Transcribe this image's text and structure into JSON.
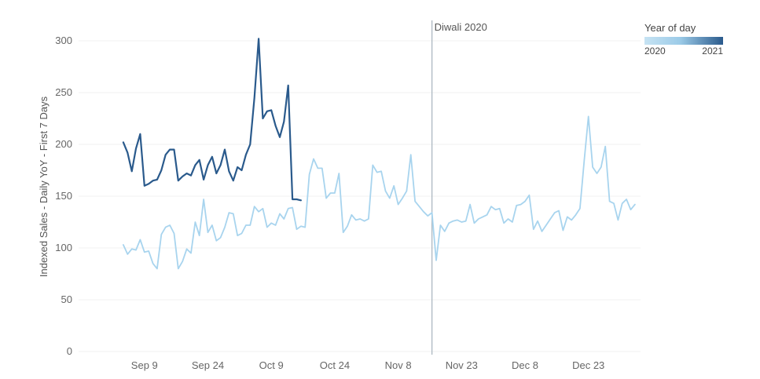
{
  "chart_data": {
    "type": "line",
    "ylabel": "Indexed Sales - Daily YoY - First 7 Days",
    "ylim": [
      0,
      300
    ],
    "yticks": [
      0,
      50,
      100,
      150,
      200,
      250,
      300
    ],
    "x_ticks": [
      {
        "label": "Sep 9",
        "day": 10
      },
      {
        "label": "Sep 24",
        "day": 25
      },
      {
        "label": "Oct 9",
        "day": 40
      },
      {
        "label": "Oct 24",
        "day": 55
      },
      {
        "label": "Nov 8",
        "day": 70
      },
      {
        "label": "Nov 23",
        "day": 85
      },
      {
        "label": "Dec 8",
        "day": 100
      },
      {
        "label": "Dec 23",
        "day": 115
      }
    ],
    "annotation": {
      "label": "Diwali 2020",
      "day": 78
    },
    "legend": {
      "title": "Year of day",
      "min_label": "2020",
      "max_label": "2021",
      "colors": [
        "#c6e3f3",
        "#2a5a8c"
      ]
    },
    "grid": true,
    "series": [
      {
        "year": "2021",
        "color": "#2a5a8c",
        "start_day": 5,
        "values": [
          202,
          192,
          174,
          196,
          210,
          160,
          162,
          165,
          166,
          175,
          190,
          195,
          195,
          165,
          169,
          172,
          170,
          180,
          185,
          166,
          180,
          188,
          172,
          180,
          195,
          174,
          165,
          178,
          175,
          190,
          200,
          245,
          302,
          225,
          232,
          233,
          218,
          207,
          222,
          257,
          147,
          147,
          146
        ]
      },
      {
        "year": "2020",
        "color": "#a8d4ee",
        "start_day": 5,
        "values": [
          103,
          94,
          99,
          98,
          108,
          96,
          97,
          85,
          80,
          113,
          120,
          122,
          114,
          80,
          87,
          99,
          95,
          125,
          112,
          147,
          115,
          122,
          107,
          110,
          120,
          134,
          133,
          112,
          114,
          122,
          122,
          140,
          135,
          138,
          120,
          124,
          122,
          133,
          128,
          138,
          139,
          118,
          121,
          120,
          171,
          186,
          177,
          177,
          148,
          153,
          153,
          172,
          115,
          121,
          132,
          127,
          128,
          126,
          128,
          180,
          173,
          174,
          155,
          148,
          160,
          142,
          148,
          155,
          190,
          145,
          140,
          135,
          131,
          134,
          88,
          122,
          116,
          124,
          126,
          127,
          125,
          126,
          142,
          124,
          128,
          130,
          132,
          140,
          137,
          138,
          124,
          128,
          125,
          141,
          142,
          145,
          151,
          118,
          126,
          116,
          122,
          128,
          134,
          136,
          117,
          130,
          127,
          132,
          138,
          184,
          227,
          178,
          172,
          178,
          198,
          145,
          143,
          127,
          143,
          147,
          137,
          142
        ]
      }
    ]
  }
}
